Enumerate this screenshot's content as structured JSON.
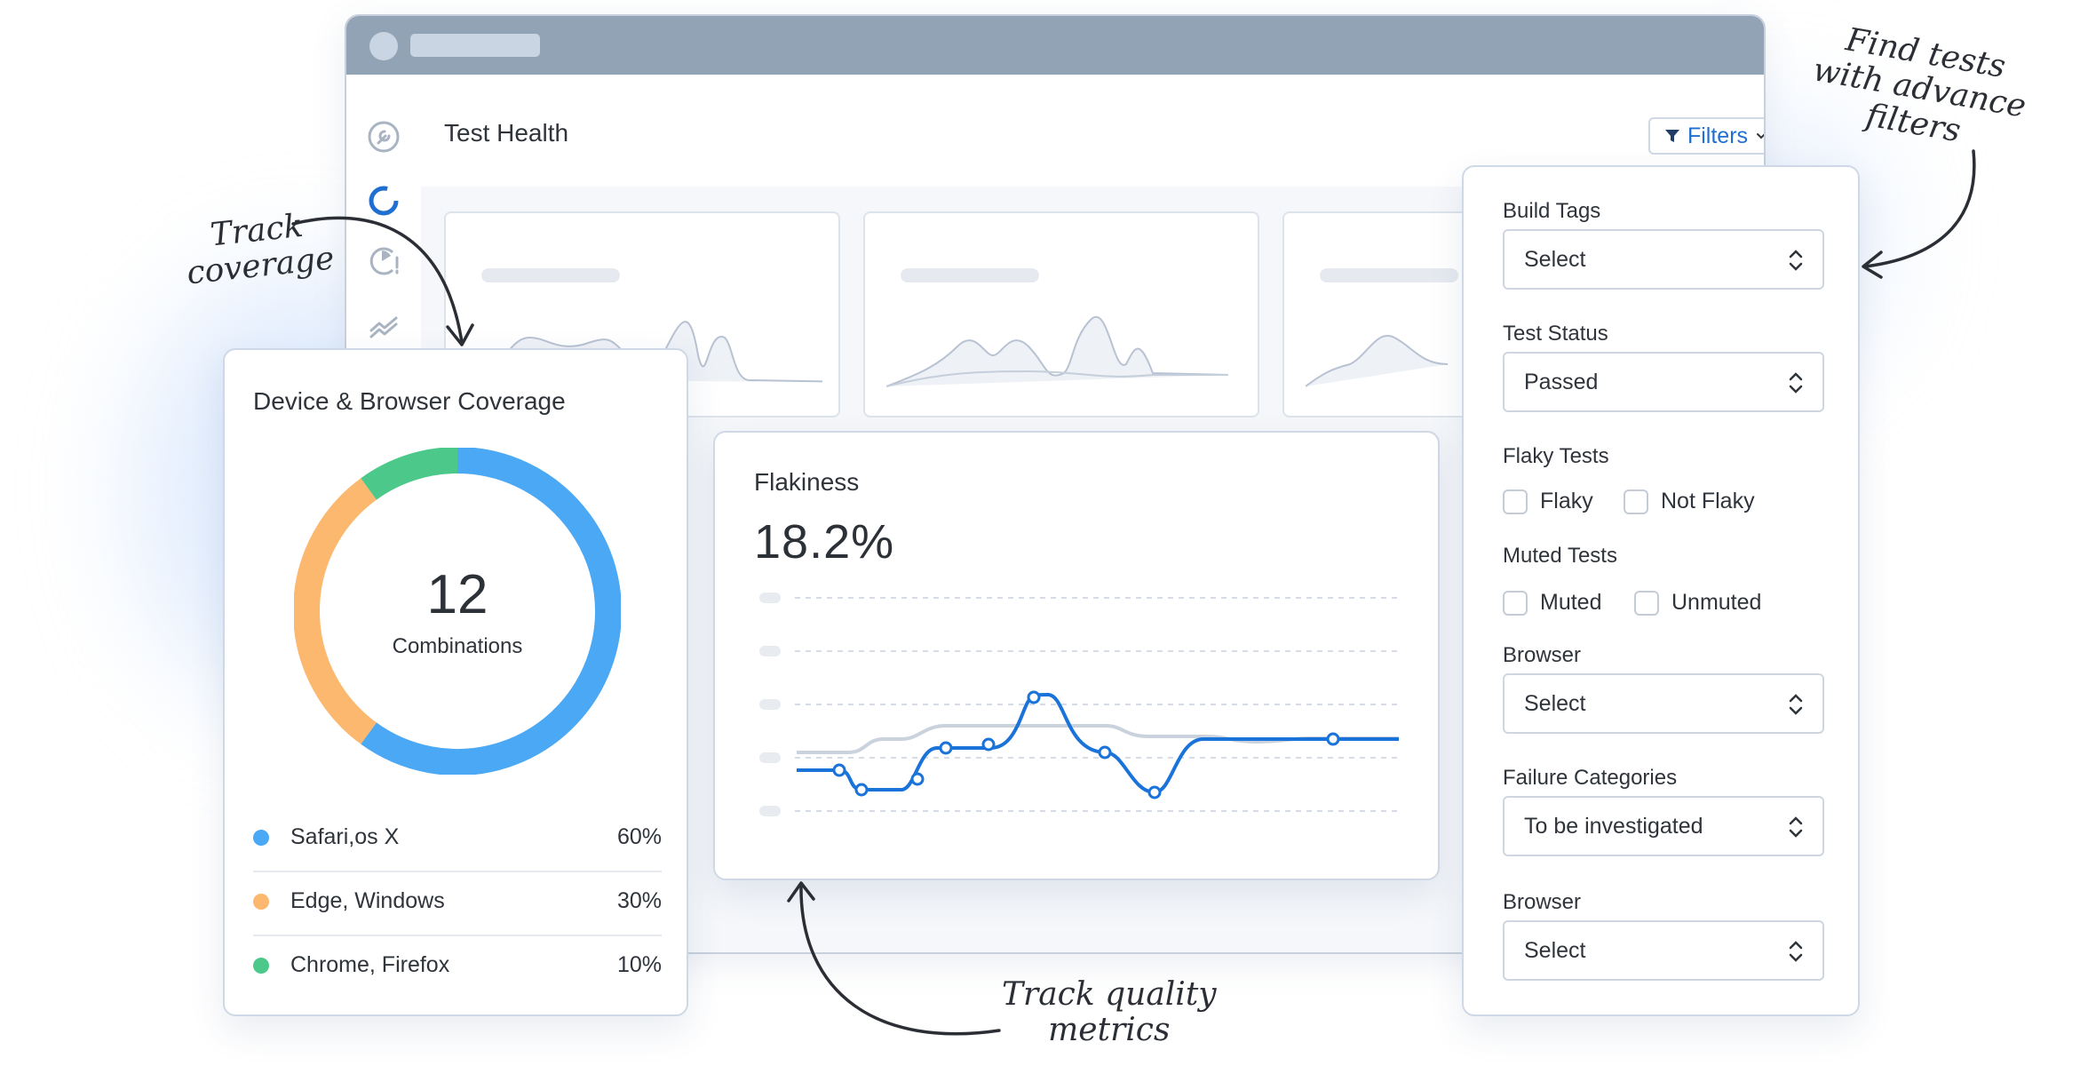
{
  "window": {
    "page_title": "Test Health",
    "filters_label": "Filters"
  },
  "sidebar": {
    "icons": [
      "wrench-icon",
      "donut-chart-icon",
      "pie-alert-icon",
      "trend-icon"
    ]
  },
  "coverage": {
    "title": "Device & Browser Coverage",
    "total": "12",
    "total_label": "Combinations",
    "items": [
      {
        "name": "Safari,os X",
        "pct": "60%",
        "value": 60,
        "color": "#4aa8f5"
      },
      {
        "name": "Edge, Windows",
        "pct": "30%",
        "value": 30,
        "color": "#fbb86e"
      },
      {
        "name": "Chrome, Firefox",
        "pct": "10%",
        "value": 10,
        "color": "#4cc98a"
      }
    ]
  },
  "flakiness": {
    "title": "Flakiness",
    "value": "18.2%"
  },
  "filter_panel": {
    "build_tags": {
      "label": "Build Tags",
      "value": "Select"
    },
    "test_status": {
      "label": "Test Status",
      "value": "Passed"
    },
    "flaky_tests": {
      "label": "Flaky Tests",
      "options": [
        "Flaky",
        "Not Flaky"
      ]
    },
    "muted_tests": {
      "label": "Muted Tests",
      "options": [
        "Muted",
        "Unmuted"
      ]
    },
    "browser": {
      "label": "Browser",
      "value": "Select"
    },
    "failure_categories": {
      "label": "Failure Categories",
      "value": "To be investigated"
    },
    "browser2": {
      "label": "Browser",
      "value": "Select"
    }
  },
  "annotations": {
    "track_coverage": [
      "Track",
      "coverage"
    ],
    "find_tests": [
      "Find tests",
      "with advance",
      "filters"
    ],
    "track_quality": [
      "Track quality",
      "metrics"
    ]
  },
  "colors": {
    "accent": "#1f6fd1",
    "line": "#1a73d9",
    "titlebar": "#93a3b6"
  }
}
